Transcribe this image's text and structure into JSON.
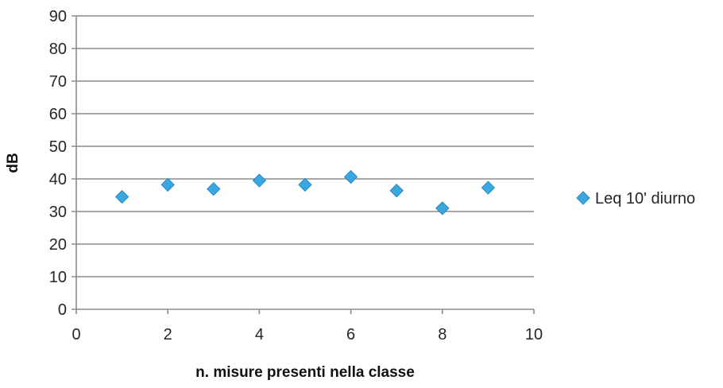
{
  "chart_data": {
    "type": "scatter",
    "title": "",
    "xlabel": "n. misure presenti nella classe",
    "ylabel": "dB",
    "xlim": [
      0,
      10
    ],
    "ylim": [
      0,
      90
    ],
    "x_ticks": [
      0,
      2,
      4,
      6,
      8,
      10
    ],
    "y_ticks": [
      0,
      10,
      20,
      30,
      40,
      50,
      60,
      70,
      80,
      90
    ],
    "grid": "horizontal",
    "legend_position": "right",
    "series": [
      {
        "name": "Leq 10' diurno",
        "color": "#3aa7e0",
        "marker": "diamond",
        "points": [
          {
            "x": 1,
            "y": 34.5
          },
          {
            "x": 2,
            "y": 38.2
          },
          {
            "x": 3,
            "y": 36.9
          },
          {
            "x": 4,
            "y": 39.5
          },
          {
            "x": 5,
            "y": 38.2
          },
          {
            "x": 6,
            "y": 40.6
          },
          {
            "x": 7,
            "y": 36.4
          },
          {
            "x": 8,
            "y": 31.0
          },
          {
            "x": 9,
            "y": 37.3
          }
        ]
      }
    ]
  }
}
